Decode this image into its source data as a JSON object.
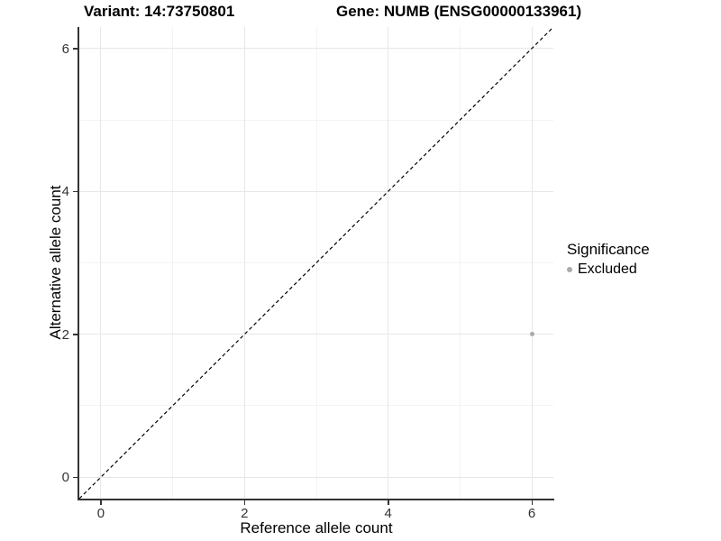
{
  "chart_data": {
    "type": "scatter",
    "titles": {
      "left": "Variant: 14:73750801",
      "right": "Gene: NUMB (ENSG00000133961)"
    },
    "xlabel": "Reference allele count",
    "ylabel": "Alternative allele count",
    "xlim": [
      -0.3,
      6.3
    ],
    "ylim": [
      -0.3,
      6.3
    ],
    "x_ticks": [
      0,
      2,
      4,
      6
    ],
    "y_ticks": [
      0,
      2,
      4,
      6
    ],
    "x_minor_gridlines": [
      1,
      3,
      5
    ],
    "y_minor_gridlines": [
      1,
      3,
      5
    ],
    "grid": "major and minor gridlines on, white panel",
    "reference_line": {
      "kind": "identity y=x",
      "style": "dashed",
      "color": "#000000",
      "from": [
        -0.3,
        -0.3
      ],
      "to": [
        6.3,
        6.3
      ]
    },
    "points": [
      {
        "x": 6,
        "y": 2,
        "series": "Excluded",
        "color": "#ABABAB"
      }
    ],
    "legend": {
      "title": "Significance",
      "position": "right",
      "items": [
        {
          "label": "Excluded",
          "color": "#ABABAB"
        }
      ]
    },
    "colors": {
      "point": "#ABABAB",
      "grid_major": "#E7E7E7",
      "grid_minor": "#F3F3F3",
      "axis_line": "#333333",
      "tick_label": "#333333",
      "background": "#FFFFFF"
    }
  }
}
